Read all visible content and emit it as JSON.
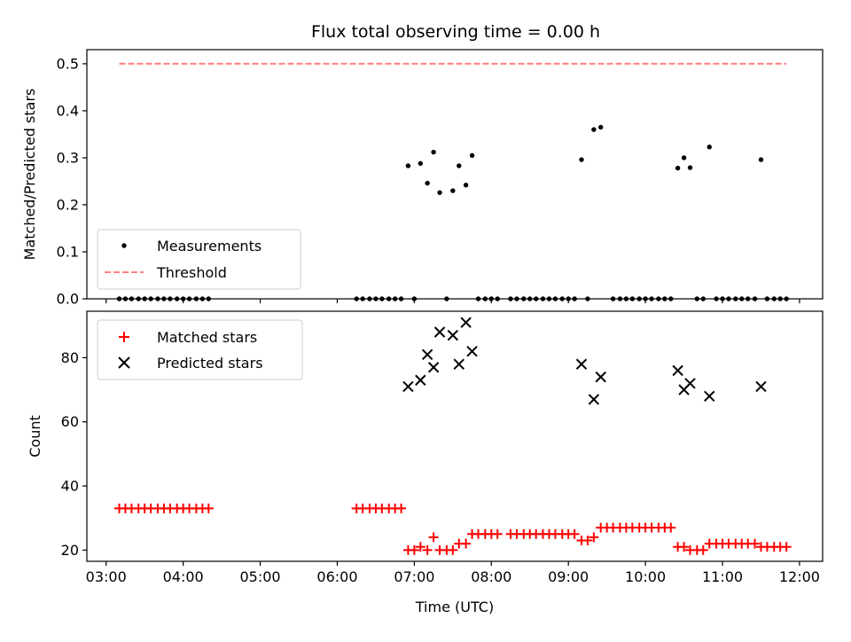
{
  "chart_data": [
    {
      "type": "scatter",
      "title": "Flux total observing time = 0.00 h",
      "xlabel": "",
      "ylabel": "Matched/Predicted stars",
      "xlim": [
        2.75,
        12.3
      ],
      "ylim": [
        0,
        0.53
      ],
      "yticks": [
        0.0,
        0.1,
        0.2,
        0.3,
        0.4,
        0.5
      ],
      "yticklabels": [
        "0.0",
        "0.1",
        "0.2",
        "0.3",
        "0.4",
        "0.5"
      ],
      "legend": {
        "location": "lower-left",
        "entries": [
          "Measurements",
          "Threshold"
        ]
      },
      "colors": {
        "measurements": "#000000",
        "threshold": "#ff7f7f"
      },
      "series": [
        {
          "name": "Measurements",
          "points": [
            [
              3.17,
              0
            ],
            [
              3.25,
              0
            ],
            [
              3.33,
              0
            ],
            [
              3.42,
              0
            ],
            [
              3.5,
              0
            ],
            [
              3.58,
              0
            ],
            [
              3.67,
              0
            ],
            [
              3.75,
              0
            ],
            [
              3.83,
              0
            ],
            [
              3.92,
              0
            ],
            [
              4.0,
              0
            ],
            [
              4.08,
              0
            ],
            [
              4.17,
              0
            ],
            [
              4.25,
              0
            ],
            [
              4.33,
              0
            ],
            [
              6.25,
              0
            ],
            [
              6.33,
              0
            ],
            [
              6.42,
              0
            ],
            [
              6.5,
              0
            ],
            [
              6.58,
              0
            ],
            [
              6.67,
              0
            ],
            [
              6.75,
              0
            ],
            [
              6.83,
              0
            ],
            [
              6.92,
              0.283
            ],
            [
              7.0,
              0
            ],
            [
              7.08,
              0.288
            ],
            [
              7.17,
              0.246
            ],
            [
              7.25,
              0.312
            ],
            [
              7.33,
              0.226
            ],
            [
              7.42,
              0
            ],
            [
              7.5,
              0.23
            ],
            [
              7.58,
              0.283
            ],
            [
              7.67,
              0.242
            ],
            [
              7.75,
              0.305
            ],
            [
              7.83,
              0
            ],
            [
              7.92,
              0
            ],
            [
              8.0,
              0
            ],
            [
              8.08,
              0
            ],
            [
              8.25,
              0
            ],
            [
              8.33,
              0
            ],
            [
              8.42,
              0
            ],
            [
              8.5,
              0
            ],
            [
              8.58,
              0
            ],
            [
              8.67,
              0
            ],
            [
              8.75,
              0
            ],
            [
              8.83,
              0
            ],
            [
              8.92,
              0
            ],
            [
              9.0,
              0
            ],
            [
              9.08,
              0
            ],
            [
              9.17,
              0.296
            ],
            [
              9.25,
              0
            ],
            [
              9.33,
              0.36
            ],
            [
              9.42,
              0.365
            ],
            [
              9.58,
              0
            ],
            [
              9.67,
              0
            ],
            [
              9.75,
              0
            ],
            [
              9.83,
              0
            ],
            [
              9.92,
              0
            ],
            [
              10.0,
              0
            ],
            [
              10.08,
              0
            ],
            [
              10.17,
              0
            ],
            [
              10.25,
              0
            ],
            [
              10.33,
              0
            ],
            [
              10.42,
              0.278
            ],
            [
              10.5,
              0.3
            ],
            [
              10.58,
              0.279
            ],
            [
              10.67,
              0
            ],
            [
              10.75,
              0
            ],
            [
              10.83,
              0.323
            ],
            [
              10.92,
              0
            ],
            [
              11.0,
              0
            ],
            [
              11.08,
              0
            ],
            [
              11.17,
              0
            ],
            [
              11.25,
              0
            ],
            [
              11.33,
              0
            ],
            [
              11.42,
              0
            ],
            [
              11.5,
              0.296
            ],
            [
              11.58,
              0
            ],
            [
              11.67,
              0
            ],
            [
              11.75,
              0
            ],
            [
              11.83,
              0
            ]
          ]
        },
        {
          "name": "Threshold",
          "style": "dashed-line",
          "points": [
            [
              3.17,
              0.5
            ],
            [
              11.83,
              0.5
            ]
          ]
        }
      ]
    },
    {
      "type": "scatter",
      "title": "",
      "xlabel": "Time (UTC)",
      "ylabel": "Count",
      "xlim": [
        2.75,
        12.3
      ],
      "ylim": [
        16.5,
        94.5
      ],
      "xticks": [
        3,
        4,
        5,
        6,
        7,
        8,
        9,
        10,
        11,
        12
      ],
      "xticklabels": [
        "03:00",
        "04:00",
        "05:00",
        "06:00",
        "07:00",
        "08:00",
        "09:00",
        "10:00",
        "11:00",
        "12:00"
      ],
      "yticks": [
        20,
        40,
        60,
        80
      ],
      "yticklabels": [
        "20",
        "40",
        "60",
        "80"
      ],
      "legend": {
        "location": "top-left",
        "entries": [
          "Matched stars",
          "Predicted stars"
        ]
      },
      "colors": {
        "matched": "#ff0000",
        "predicted": "#000000"
      },
      "series": [
        {
          "name": "Matched stars",
          "marker": "plus",
          "points": [
            [
              3.17,
              33
            ],
            [
              3.25,
              33
            ],
            [
              3.33,
              33
            ],
            [
              3.42,
              33
            ],
            [
              3.5,
              33
            ],
            [
              3.58,
              33
            ],
            [
              3.67,
              33
            ],
            [
              3.75,
              33
            ],
            [
              3.83,
              33
            ],
            [
              3.92,
              33
            ],
            [
              4.0,
              33
            ],
            [
              4.08,
              33
            ],
            [
              4.17,
              33
            ],
            [
              4.25,
              33
            ],
            [
              4.33,
              33
            ],
            [
              6.25,
              33
            ],
            [
              6.33,
              33
            ],
            [
              6.42,
              33
            ],
            [
              6.5,
              33
            ],
            [
              6.58,
              33
            ],
            [
              6.67,
              33
            ],
            [
              6.75,
              33
            ],
            [
              6.83,
              33
            ],
            [
              6.92,
              20
            ],
            [
              7.0,
              20
            ],
            [
              7.08,
              21
            ],
            [
              7.17,
              20
            ],
            [
              7.25,
              24
            ],
            [
              7.33,
              20
            ],
            [
              7.42,
              20
            ],
            [
              7.5,
              20
            ],
            [
              7.58,
              22
            ],
            [
              7.67,
              22
            ],
            [
              7.75,
              25
            ],
            [
              7.83,
              25
            ],
            [
              7.92,
              25
            ],
            [
              8.0,
              25
            ],
            [
              8.08,
              25
            ],
            [
              8.25,
              25
            ],
            [
              8.33,
              25
            ],
            [
              8.42,
              25
            ],
            [
              8.5,
              25
            ],
            [
              8.58,
              25
            ],
            [
              8.67,
              25
            ],
            [
              8.75,
              25
            ],
            [
              8.83,
              25
            ],
            [
              8.92,
              25
            ],
            [
              9.0,
              25
            ],
            [
              9.08,
              25
            ],
            [
              9.17,
              23
            ],
            [
              9.25,
              23
            ],
            [
              9.33,
              24
            ],
            [
              9.42,
              27
            ],
            [
              9.5,
              27
            ],
            [
              9.58,
              27
            ],
            [
              9.67,
              27
            ],
            [
              9.75,
              27
            ],
            [
              9.83,
              27
            ],
            [
              9.92,
              27
            ],
            [
              10.0,
              27
            ],
            [
              10.08,
              27
            ],
            [
              10.17,
              27
            ],
            [
              10.25,
              27
            ],
            [
              10.33,
              27
            ],
            [
              10.42,
              21
            ],
            [
              10.5,
              21
            ],
            [
              10.58,
              20
            ],
            [
              10.67,
              20
            ],
            [
              10.75,
              20
            ],
            [
              10.83,
              22
            ],
            [
              10.92,
              22
            ],
            [
              11.0,
              22
            ],
            [
              11.08,
              22
            ],
            [
              11.17,
              22
            ],
            [
              11.25,
              22
            ],
            [
              11.33,
              22
            ],
            [
              11.42,
              22
            ],
            [
              11.5,
              21
            ],
            [
              11.58,
              21
            ],
            [
              11.67,
              21
            ],
            [
              11.75,
              21
            ],
            [
              11.83,
              21
            ]
          ]
        },
        {
          "name": "Predicted stars",
          "marker": "x",
          "points": [
            [
              6.92,
              71
            ],
            [
              7.08,
              73
            ],
            [
              7.17,
              81
            ],
            [
              7.25,
              77
            ],
            [
              7.33,
              88
            ],
            [
              7.5,
              87
            ],
            [
              7.58,
              78
            ],
            [
              7.67,
              91
            ],
            [
              7.75,
              82
            ],
            [
              9.17,
              78
            ],
            [
              9.33,
              67
            ],
            [
              9.42,
              74
            ],
            [
              10.42,
              76
            ],
            [
              10.5,
              70
            ],
            [
              10.58,
              72
            ],
            [
              10.83,
              68
            ],
            [
              11.5,
              71
            ]
          ]
        }
      ]
    }
  ]
}
